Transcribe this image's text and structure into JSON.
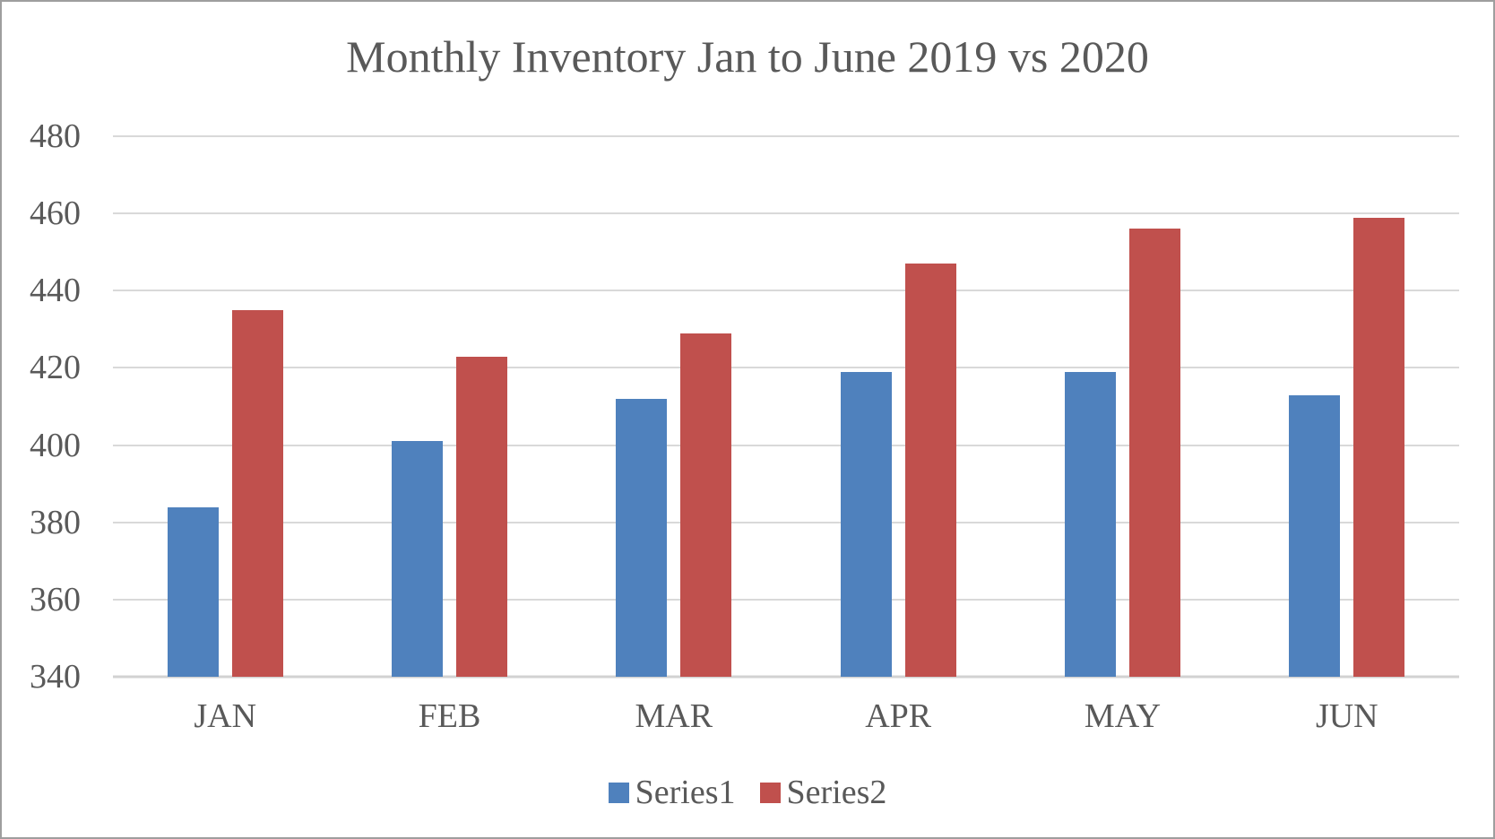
{
  "chart_data": {
    "type": "bar",
    "title": "Monthly Inventory Jan to June 2019 vs 2020",
    "categories": [
      "JAN",
      "FEB",
      "MAR",
      "APR",
      "MAY",
      "JUN"
    ],
    "series": [
      {
        "name": "Series1",
        "color": "#4F81BD",
        "values": [
          384,
          401,
          412,
          419,
          419,
          413
        ]
      },
      {
        "name": "Series2",
        "color": "#C0504D",
        "values": [
          435,
          423,
          429,
          447,
          456,
          459
        ]
      }
    ],
    "ylim": [
      340,
      480
    ],
    "y_ticks": [
      480,
      460,
      440,
      420,
      400,
      380,
      360,
      340
    ],
    "y_tick_step": 20,
    "grid": "horizontal",
    "legend_position": "bottom",
    "xlabel": "",
    "ylabel": ""
  },
  "colors": {
    "text": "#595959",
    "gridline": "#D9D9D9",
    "axis_line": "#D2D2D2",
    "frame_border": "#9E9E9E",
    "background": "#FFFFFF"
  }
}
